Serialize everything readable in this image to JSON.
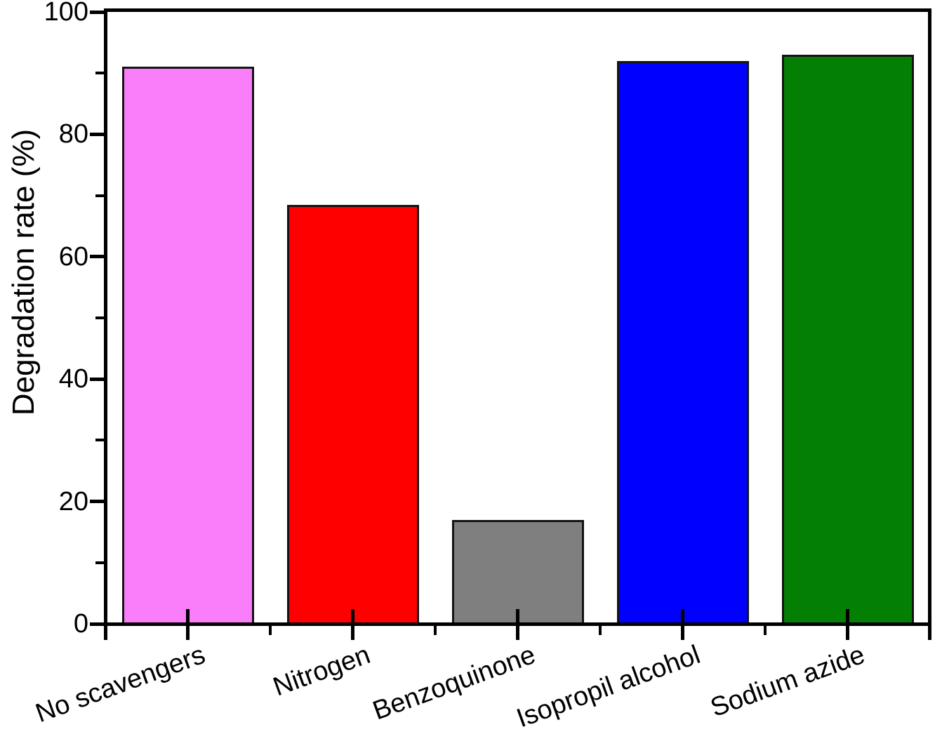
{
  "chart_data": {
    "type": "bar",
    "title": "",
    "xlabel": "",
    "ylabel": "Degradation rate (%)",
    "categories": [
      "No scavengers",
      "Nitrogen",
      "Benzoquinone",
      "Isopropil alcohol",
      "Sodium azide"
    ],
    "values": [
      91,
      68.5,
      17,
      92,
      93
    ],
    "colors": [
      "#FA7DFA",
      "#FF0000",
      "#7F7F7F",
      "#0000FF",
      "#038003"
    ],
    "bar_edge_color": "#141414",
    "axis_color": "#000000",
    "background_color": "#ffffff",
    "ylim": [
      0,
      100
    ],
    "yticks_major": [
      0,
      20,
      40,
      60,
      80,
      100
    ],
    "yticks_minor": [
      10,
      30,
      50,
      70,
      90
    ],
    "x_tick_style": "cross-at-bar-centers",
    "category_label_rotation_deg": 20,
    "grid": false,
    "legend": "none"
  }
}
